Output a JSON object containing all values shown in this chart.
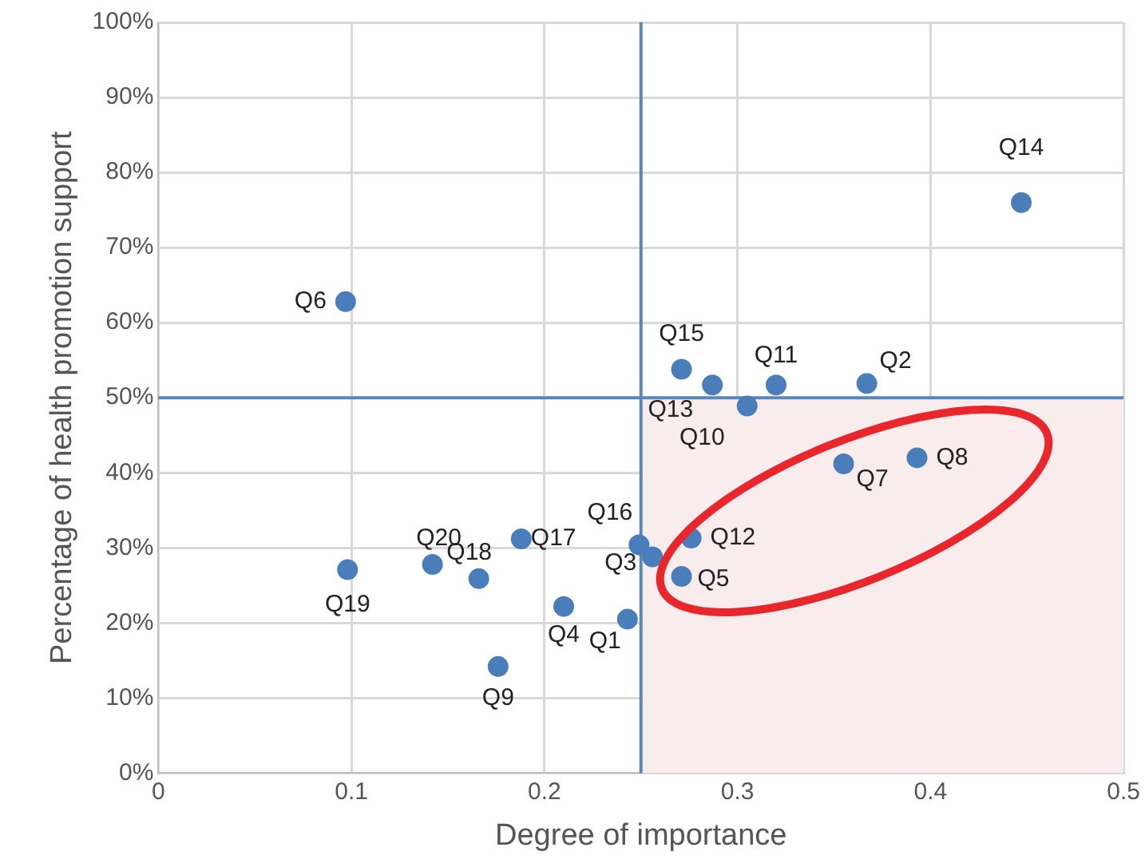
{
  "chart_data": {
    "type": "scatter",
    "xlabel": "Degree of importance",
    "ylabel": "Percentage of health promotion support",
    "x": [
      0.243,
      0.367,
      0.256,
      0.21,
      0.271,
      0.097,
      0.355,
      0.393,
      0.176,
      0.305,
      0.32,
      0.276,
      0.287,
      0.447,
      0.271,
      0.249,
      0.188,
      0.166,
      0.098,
      0.142
    ],
    "series": [
      {
        "color": "#4a7ebb",
        "values": [
          20.5,
          51.9,
          28.8,
          22.2,
          26.2,
          62.8,
          41.2,
          42.0,
          14.2,
          48.9,
          51.7,
          31.3,
          51.7,
          76.0,
          53.8,
          30.4,
          31.2,
          25.9,
          27.1,
          27.8
        ]
      }
    ],
    "annotations": [
      {
        "text": "Q1",
        "x": 0.243,
        "y": 20.5
      },
      {
        "text": "Q2",
        "x": 0.367,
        "y": 51.9
      },
      {
        "text": "Q3",
        "x": 0.256,
        "y": 28.8
      },
      {
        "text": "Q4",
        "x": 0.21,
        "y": 22.2
      },
      {
        "text": "Q5",
        "x": 0.271,
        "y": 26.2
      },
      {
        "text": "Q6",
        "x": 0.097,
        "y": 62.8
      },
      {
        "text": "Q7",
        "x": 0.355,
        "y": 41.2
      },
      {
        "text": "Q8",
        "x": 0.393,
        "y": 42.0
      },
      {
        "text": "Q9",
        "x": 0.176,
        "y": 14.2
      },
      {
        "text": "Q10",
        "x": 0.305,
        "y": 48.9
      },
      {
        "text": "Q11",
        "x": 0.32,
        "y": 51.7
      },
      {
        "text": "Q12",
        "x": 0.276,
        "y": 31.3
      },
      {
        "text": "Q13",
        "x": 0.287,
        "y": 51.7
      },
      {
        "text": "Q14",
        "x": 0.447,
        "y": 76.0
      },
      {
        "text": "Q15",
        "x": 0.271,
        "y": 53.8
      },
      {
        "text": "Q16",
        "x": 0.249,
        "y": 30.4
      },
      {
        "text": "Q17",
        "x": 0.188,
        "y": 31.2
      },
      {
        "text": "Q18",
        "x": 0.166,
        "y": 25.9
      },
      {
        "text": "Q19",
        "x": 0.098,
        "y": 27.1
      },
      {
        "text": "Q20",
        "x": 0.142,
        "y": 27.8
      }
    ],
    "xlim": [
      0,
      0.5
    ],
    "xticks": [
      0,
      0.1,
      0.2,
      0.3,
      0.4,
      0.5
    ],
    "ylim": [
      0,
      100
    ],
    "yticks": [
      {
        "value": 0,
        "label": "0%"
      },
      {
        "value": 10,
        "label": "10%"
      },
      {
        "value": 20,
        "label": "20%"
      },
      {
        "value": 30,
        "label": "30%"
      },
      {
        "value": 40,
        "label": "40%"
      },
      {
        "value": 50,
        "label": "50%"
      },
      {
        "value": 60,
        "label": "60%"
      },
      {
        "value": 70,
        "label": "70%"
      },
      {
        "value": 80,
        "label": "80%"
      },
      {
        "value": 90,
        "label": "90%"
      },
      {
        "value": 100,
        "label": "100%"
      }
    ],
    "ref_lines": [
      {
        "axis": "x",
        "value": 0.25,
        "color": "#5b86b8"
      },
      {
        "axis": "y",
        "value": 50,
        "color": "#5b86b8"
      }
    ],
    "bands": [
      {
        "axis": "x",
        "from": 0.25,
        "to": 0.5,
        "color": "#f8ecec"
      }
    ],
    "grid": true,
    "legend": false,
    "marker": "circle"
  }
}
